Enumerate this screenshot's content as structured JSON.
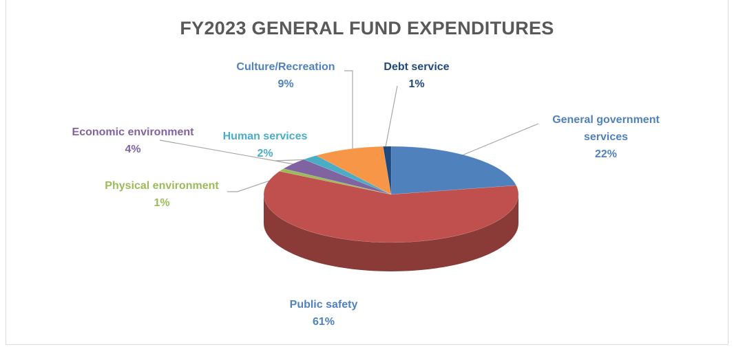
{
  "chart_data": {
    "type": "pie3d",
    "title": "FY2023 GENERAL FUND EXPENDITURES",
    "categories": [
      "General government services",
      "Public safety",
      "Physical environment",
      "Economic environment",
      "Human services",
      "Culture/Recreation",
      "Debt service"
    ],
    "values": [
      22,
      61,
      1,
      4,
      2,
      9,
      1
    ],
    "value_labels": [
      "22%",
      "61%",
      "1%",
      "4%",
      "2%",
      "9%",
      "1%"
    ],
    "colors": [
      "#4f81bd",
      "#c0504d",
      "#9bbb59",
      "#8064a2",
      "#4bacc6",
      "#f79646",
      "#1f497d"
    ],
    "label_colors": [
      "#4f81bd",
      "#4f81bd",
      "#9bbb59",
      "#8064a2",
      "#4bacc6",
      "#4f81bd",
      "#1f497d"
    ]
  }
}
